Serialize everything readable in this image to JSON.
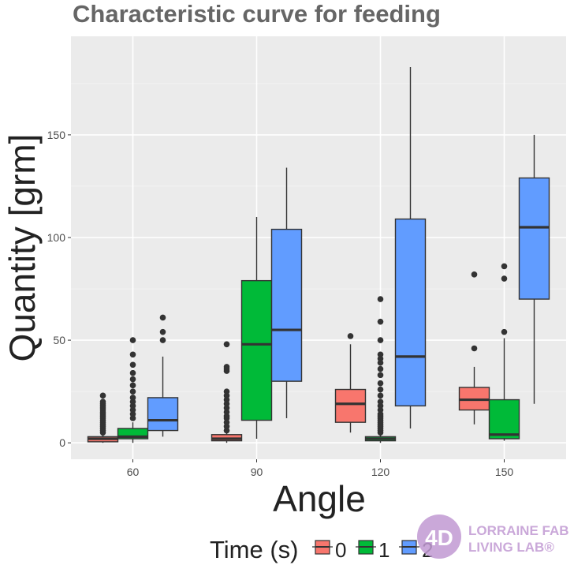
{
  "chart_data": {
    "type": "box",
    "title": "Characteristic curve for feeding",
    "xlabel": "Angle",
    "ylabel": "Quantity [grm]",
    "categories": [
      "60",
      "90",
      "120",
      "150"
    ],
    "ylim": [
      -8,
      198
    ],
    "y_ticks": [
      0,
      50,
      100,
      150
    ],
    "grid": true,
    "legend": {
      "title": "Time (s)",
      "position": "bottom"
    },
    "series": [
      {
        "name": "0",
        "color": "#f8766d",
        "boxes": [
          {
            "min": 0,
            "q1": 0.5,
            "median": 2,
            "q3": 3,
            "max": 4,
            "outliers": [
              5,
              6,
              7,
              8,
              9,
              10,
              11,
              12,
              13,
              14,
              15,
              16,
              17,
              18,
              19,
              20,
              23
            ]
          },
          {
            "min": 0,
            "q1": 1,
            "median": 2,
            "q3": 4,
            "max": 5,
            "outliers": [
              6,
              8,
              10,
              12,
              13,
              15,
              17,
              19,
              21,
              23,
              25,
              35,
              36,
              37,
              48
            ]
          },
          {
            "min": 5,
            "q1": 10,
            "median": 19,
            "q3": 26,
            "max": 48,
            "outliers": [
              52
            ]
          },
          {
            "min": 9,
            "q1": 16,
            "median": 21,
            "q3": 27,
            "max": 37,
            "outliers": [
              46,
              82
            ]
          }
        ]
      },
      {
        "name": "1",
        "color": "#00ba38",
        "boxes": [
          {
            "min": 0,
            "q1": 2,
            "median": 3,
            "q3": 7,
            "max": 10,
            "outliers": [
              12,
              14,
              16,
              18,
              20,
              22,
              25,
              28,
              31,
              34,
              38,
              43,
              50
            ]
          },
          {
            "min": 2,
            "q1": 11,
            "median": 48,
            "q3": 79,
            "max": 110,
            "outliers": []
          },
          {
            "min": 0,
            "q1": 1,
            "median": 2,
            "q3": 3,
            "max": 4,
            "outliers": [
              5,
              6,
              7,
              8,
              9,
              10,
              11,
              12,
              13,
              14,
              16,
              18,
              20,
              23,
              26,
              29,
              33,
              36,
              39,
              41,
              43,
              50,
              59,
              70
            ]
          },
          {
            "min": 1,
            "q1": 2,
            "median": 4,
            "q3": 21,
            "max": 51,
            "outliers": [
              54,
              80,
              86
            ]
          }
        ]
      },
      {
        "name": "2",
        "color": "#619cff",
        "boxes": [
          {
            "min": 3,
            "q1": 6,
            "median": 11,
            "q3": 22,
            "max": 42,
            "outliers": [
              50,
              54,
              61
            ]
          },
          {
            "min": 12,
            "q1": 30,
            "median": 55,
            "q3": 104,
            "max": 134,
            "outliers": []
          },
          {
            "min": 7,
            "q1": 18,
            "median": 42,
            "q3": 109,
            "max": 183,
            "outliers": []
          },
          {
            "min": 19,
            "q1": 70,
            "median": 105,
            "q3": 129,
            "max": 150,
            "outliers": []
          }
        ]
      }
    ]
  },
  "watermark": {
    "logo_text": "4D",
    "line1": "LORRAINE FAB",
    "line2": "LIVING LAB®",
    "color": "#c19ad3"
  }
}
